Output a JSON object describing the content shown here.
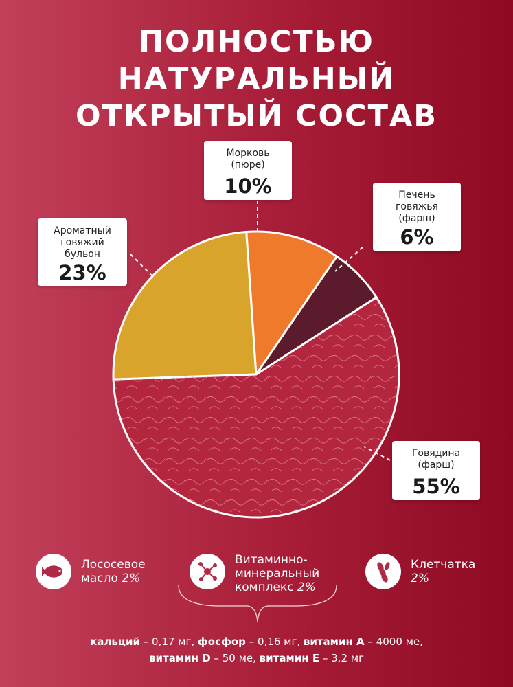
{
  "title": [
    "Полностью",
    "натуральный",
    "открытый состав"
  ],
  "chart_data": {
    "type": "pie",
    "slices": [
      {
        "label": "Ароматный говяжий бульон",
        "label_lines": [
          "Ароматный",
          "говяжий",
          "бульон"
        ],
        "value": 23,
        "display": "23%",
        "color": "#d8a42c"
      },
      {
        "label": "Морковь (пюре)",
        "label_lines": [
          "Морковь",
          "(пюре)"
        ],
        "value": 10,
        "display": "10%",
        "color": "#ef7a2c"
      },
      {
        "label": "Печень говяжья (фарш)",
        "label_lines": [
          "Печень",
          "говяжья",
          "(фарш)"
        ],
        "value": 6,
        "display": "6%",
        "color": "#5b1b2c"
      },
      {
        "label": "Говядина (фарш)",
        "label_lines": [
          "Говядина",
          "(фарш)"
        ],
        "value": 55,
        "display": "55%",
        "color": "#b3263e"
      }
    ]
  },
  "extras": [
    {
      "icon": "fish-icon",
      "lines": [
        "Лососевое",
        "масло"
      ],
      "pct": "2%"
    },
    {
      "icon": "molecule-icon",
      "lines": [
        "Витаминно-",
        "минеральный",
        "комплекс"
      ],
      "pct": "2%"
    },
    {
      "icon": "wheat-icon",
      "lines": [
        "Клетчатка"
      ],
      "pct": "2%"
    }
  ],
  "vitamins": [
    {
      "name": "кальций",
      "value": " – 0,17 мг, "
    },
    {
      "name": "фосфор",
      "value": " – 0,16 мг, "
    },
    {
      "name": "витамин A",
      "value": " – 4000 ме,"
    },
    {
      "name": "витамин D",
      "value": " – 50 ме, "
    },
    {
      "name": "витамин E",
      "value": " – 3,2 мг"
    }
  ]
}
